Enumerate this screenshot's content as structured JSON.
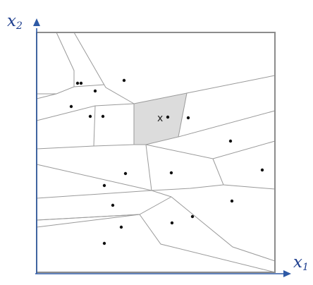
{
  "axes": {
    "y_label": {
      "base": "x",
      "subscript": "2"
    },
    "x_label": {
      "base": "x",
      "subscript": "1"
    }
  },
  "query_point": {
    "label": "x"
  },
  "colors": {
    "axis": "#2e5aa6",
    "axis_label": "#1f3f8f",
    "cell_edge": "#9a9a9a",
    "highlight_cell": "#dcdcdc",
    "site": "#111111"
  }
}
